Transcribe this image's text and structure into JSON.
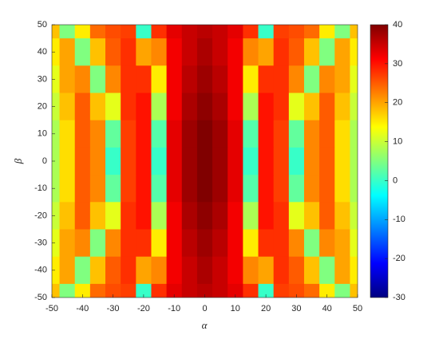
{
  "chart_data": {
    "type": "heatmap",
    "xlabel": "α",
    "ylabel": "β",
    "colormap": "jet",
    "x": [
      -50,
      -45,
      -40,
      -35,
      -30,
      -25,
      -20,
      -15,
      -10,
      -5,
      0,
      5,
      10,
      15,
      20,
      25,
      30,
      35,
      40,
      45,
      50
    ],
    "y": [
      50,
      40,
      30,
      20,
      10,
      0,
      -10,
      -20,
      -30,
      -40,
      -50
    ],
    "z": [
      [
        18,
        5,
        15,
        24,
        26,
        27,
        0,
        28,
        33,
        35,
        36,
        35,
        33,
        28,
        0,
        27,
        26,
        24,
        15,
        5,
        18
      ],
      [
        15,
        20,
        5,
        18,
        25,
        28,
        20,
        22,
        32,
        35,
        37,
        35,
        32,
        22,
        20,
        28,
        25,
        18,
        5,
        20,
        15
      ],
      [
        12,
        20,
        22,
        5,
        22,
        28,
        28,
        15,
        32,
        36,
        38,
        36,
        32,
        15,
        28,
        28,
        22,
        5,
        22,
        20,
        12
      ],
      [
        10,
        18,
        25,
        18,
        12,
        28,
        30,
        8,
        32,
        37,
        39,
        37,
        32,
        8,
        30,
        28,
        12,
        18,
        25,
        18,
        10
      ],
      [
        8,
        16,
        25,
        22,
        3,
        27,
        30,
        2,
        33,
        38,
        40,
        38,
        33,
        2,
        30,
        27,
        3,
        22,
        25,
        16,
        8
      ],
      [
        8,
        16,
        25,
        22,
        0,
        27,
        30,
        0,
        33,
        38,
        40,
        38,
        33,
        0,
        30,
        27,
        0,
        22,
        25,
        16,
        8
      ],
      [
        8,
        16,
        25,
        22,
        3,
        27,
        30,
        2,
        33,
        38,
        40,
        38,
        33,
        2,
        30,
        27,
        3,
        22,
        25,
        16,
        8
      ],
      [
        10,
        18,
        25,
        18,
        12,
        28,
        30,
        8,
        32,
        37,
        39,
        37,
        32,
        8,
        30,
        28,
        12,
        18,
        25,
        18,
        10
      ],
      [
        12,
        20,
        22,
        5,
        22,
        28,
        28,
        15,
        32,
        36,
        38,
        36,
        32,
        15,
        28,
        28,
        22,
        5,
        22,
        20,
        12
      ],
      [
        15,
        20,
        5,
        18,
        25,
        28,
        20,
        22,
        32,
        35,
        37,
        35,
        32,
        22,
        20,
        28,
        25,
        18,
        5,
        20,
        15
      ],
      [
        18,
        5,
        15,
        24,
        26,
        27,
        0,
        28,
        33,
        35,
        36,
        35,
        33,
        28,
        0,
        27,
        26,
        24,
        15,
        5,
        18
      ]
    ],
    "xlim": [
      -50,
      50
    ],
    "ylim": [
      -50,
      50
    ],
    "xticks": [
      -50,
      -40,
      -30,
      -20,
      -10,
      0,
      10,
      20,
      30,
      40,
      50
    ],
    "yticks": [
      -50,
      -40,
      -30,
      -20,
      -10,
      0,
      10,
      20,
      30,
      40,
      50
    ],
    "clim": [
      -30,
      40
    ],
    "cticks": [
      -30,
      -20,
      -10,
      0,
      10,
      20,
      30,
      40
    ]
  }
}
